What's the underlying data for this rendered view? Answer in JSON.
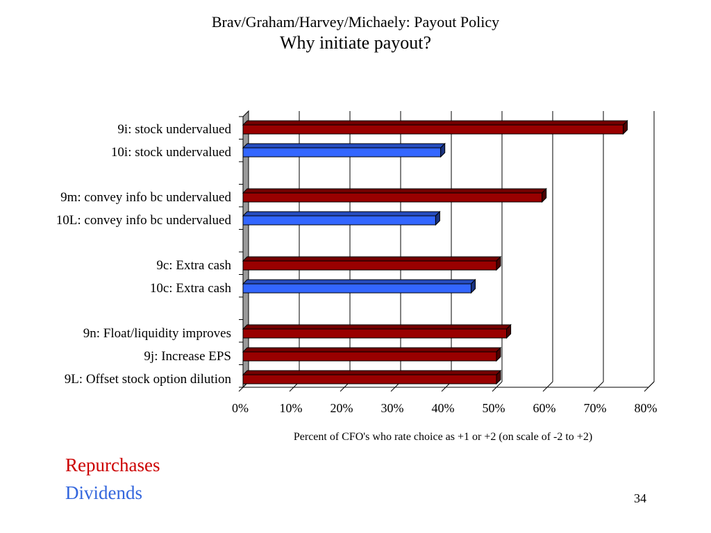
{
  "header": {
    "title": "Brav/Graham/Harvey/Michaely: Payout Policy",
    "subtitle": "Why initiate payout?"
  },
  "legend": {
    "repurchases": "Repurchases",
    "dividends": "Dividends"
  },
  "page_number": "34",
  "colors": {
    "repurchases": "#990000",
    "dividends": "#3366ff"
  },
  "chart_data": {
    "type": "bar",
    "orientation": "horizontal",
    "categories": [
      "9i: stock undervalued",
      "10i: stock undervalued",
      "9m: convey info bc undervalued",
      "10L: convey info bc undervalued",
      "9c: Extra cash",
      "10c: Extra cash",
      "9n: Float/liquidity improves",
      "9j: Increase EPS",
      "9L: Offset stock option dilution"
    ],
    "values": [
      75,
      39,
      59,
      38,
      50,
      45,
      52,
      50,
      50
    ],
    "groups": [
      "Repurchases",
      "Dividends",
      "Repurchases",
      "Dividends",
      "Repurchases",
      "Dividends",
      "Repurchases",
      "Repurchases",
      "Repurchases"
    ],
    "xlabel": "Percent of CFO's who rate choice as +1 or +2 (on scale of -2  to +2)",
    "xlim": [
      0,
      80
    ],
    "x_ticks": [
      "0%",
      "10%",
      "20%",
      "30%",
      "40%",
      "50%",
      "60%",
      "70%",
      "80%"
    ],
    "grid": true
  }
}
